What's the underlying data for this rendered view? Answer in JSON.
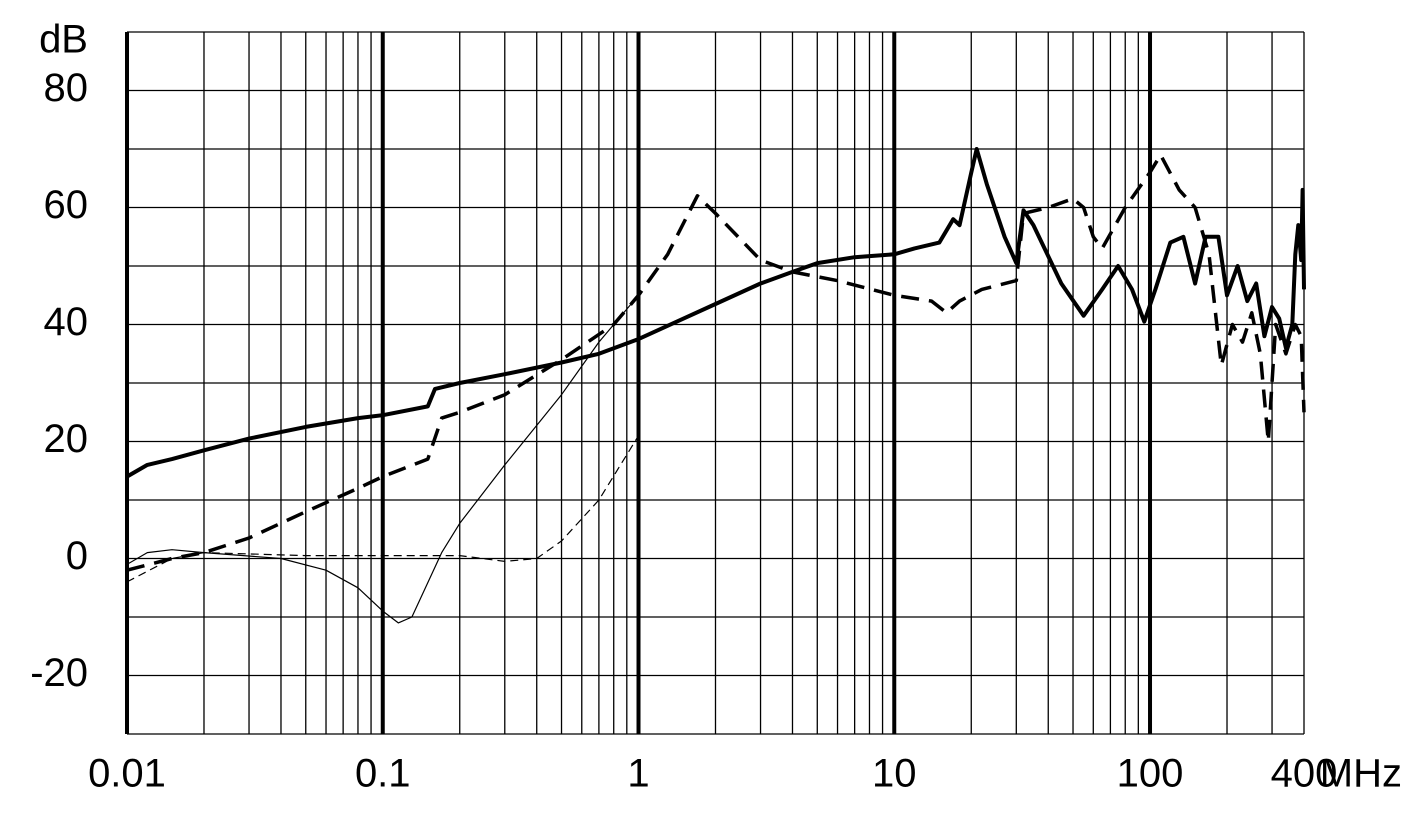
{
  "chart_data": {
    "type": "line",
    "y_label": "dB",
    "x_label": "MHz",
    "xscale": "log",
    "xlim": [
      0.01,
      400
    ],
    "ylim": [
      -30,
      90
    ],
    "xticks": [
      0.01,
      0.1,
      1,
      10,
      100,
      400
    ],
    "yticks": [
      -20,
      0,
      20,
      40,
      60,
      80
    ],
    "xgrid": [
      0.02,
      0.03,
      0.04,
      0.05,
      0.06,
      0.07,
      0.08,
      0.09,
      0.2,
      0.3,
      0.4,
      0.5,
      0.6,
      0.7,
      0.8,
      0.9,
      2,
      3,
      4,
      5,
      6,
      7,
      8,
      9,
      20,
      30,
      40,
      50,
      60,
      70,
      80,
      90,
      200,
      300
    ],
    "ygrid": [
      -30,
      -10,
      10,
      30,
      50,
      70,
      90
    ],
    "grid": true,
    "series": [
      {
        "color": "#000000",
        "width": 4,
        "dash": "none",
        "x": [
          0.01,
          0.012,
          0.015,
          0.02,
          0.03,
          0.05,
          0.08,
          0.1,
          0.15,
          0.16,
          0.2,
          0.3,
          0.5,
          0.7,
          1,
          1.5,
          2,
          3,
          4,
          5,
          7,
          10,
          12,
          15,
          17,
          18,
          20,
          21,
          23,
          27,
          30,
          32,
          35,
          45,
          55,
          65,
          75,
          85,
          95,
          105,
          120,
          135,
          150,
          165,
          185,
          200,
          220,
          240,
          260,
          280,
          300,
          320,
          340,
          360,
          370,
          380,
          390,
          395,
          400
        ],
        "values": [
          14,
          16,
          17,
          18.5,
          20.5,
          22.5,
          24,
          24.5,
          26,
          29,
          30,
          31.5,
          33.5,
          35,
          37.5,
          41,
          43.5,
          47,
          49,
          50.5,
          51.5,
          52,
          53,
          54,
          58,
          57,
          66,
          70,
          64,
          55,
          50.5,
          59.5,
          57,
          47,
          41.5,
          46,
          50,
          46,
          40.5,
          46,
          54,
          55,
          47,
          55,
          55,
          45,
          50,
          44,
          47,
          38,
          43,
          41,
          36,
          40,
          52,
          57,
          51,
          63,
          46
        ]
      },
      {
        "color": "#000000",
        "width": 3.5,
        "dash": "18 10",
        "x": [
          0.01,
          0.015,
          0.02,
          0.03,
          0.05,
          0.08,
          0.1,
          0.15,
          0.17,
          0.2,
          0.3,
          0.5,
          0.8,
          1,
          1.3,
          1.7,
          2,
          3,
          4,
          6,
          10,
          14,
          16,
          18,
          22,
          30,
          32,
          40,
          50,
          55,
          60,
          65,
          80,
          100,
          110,
          130,
          150,
          170,
          190,
          210,
          230,
          250,
          270,
          290,
          310,
          340,
          370,
          390,
          400
        ],
        "values": [
          -2,
          0,
          1,
          3.5,
          8,
          12,
          14,
          17,
          24,
          25,
          28,
          34,
          40,
          45,
          52,
          62,
          59,
          51,
          49,
          47.5,
          45,
          44,
          42,
          44,
          46,
          47.5,
          59,
          60,
          61.5,
          60,
          55,
          53,
          60,
          66,
          69,
          63,
          60,
          52,
          33,
          40,
          37,
          42,
          35,
          20,
          40,
          35,
          40,
          38,
          25
        ]
      },
      {
        "color": "#000000",
        "width": 1.2,
        "dash": "none",
        "x": [
          0.01,
          0.012,
          0.015,
          0.02,
          0.04,
          0.06,
          0.08,
          0.1,
          0.115,
          0.13,
          0.17,
          0.2,
          0.3,
          0.5,
          0.7,
          1
        ],
        "values": [
          -1,
          1,
          1.5,
          1,
          0,
          -2,
          -5,
          -9,
          -11,
          -10,
          1,
          6,
          16,
          28,
          37,
          45
        ]
      },
      {
        "color": "#000000",
        "width": 1.2,
        "dash": "8 5",
        "x": [
          0.01,
          0.015,
          0.02,
          0.05,
          0.1,
          0.2,
          0.3,
          0.4,
          0.5,
          0.7,
          1
        ],
        "values": [
          -4,
          0,
          1,
          0.5,
          0.5,
          0.5,
          -0.5,
          0,
          3,
          10,
          21
        ]
      }
    ]
  }
}
